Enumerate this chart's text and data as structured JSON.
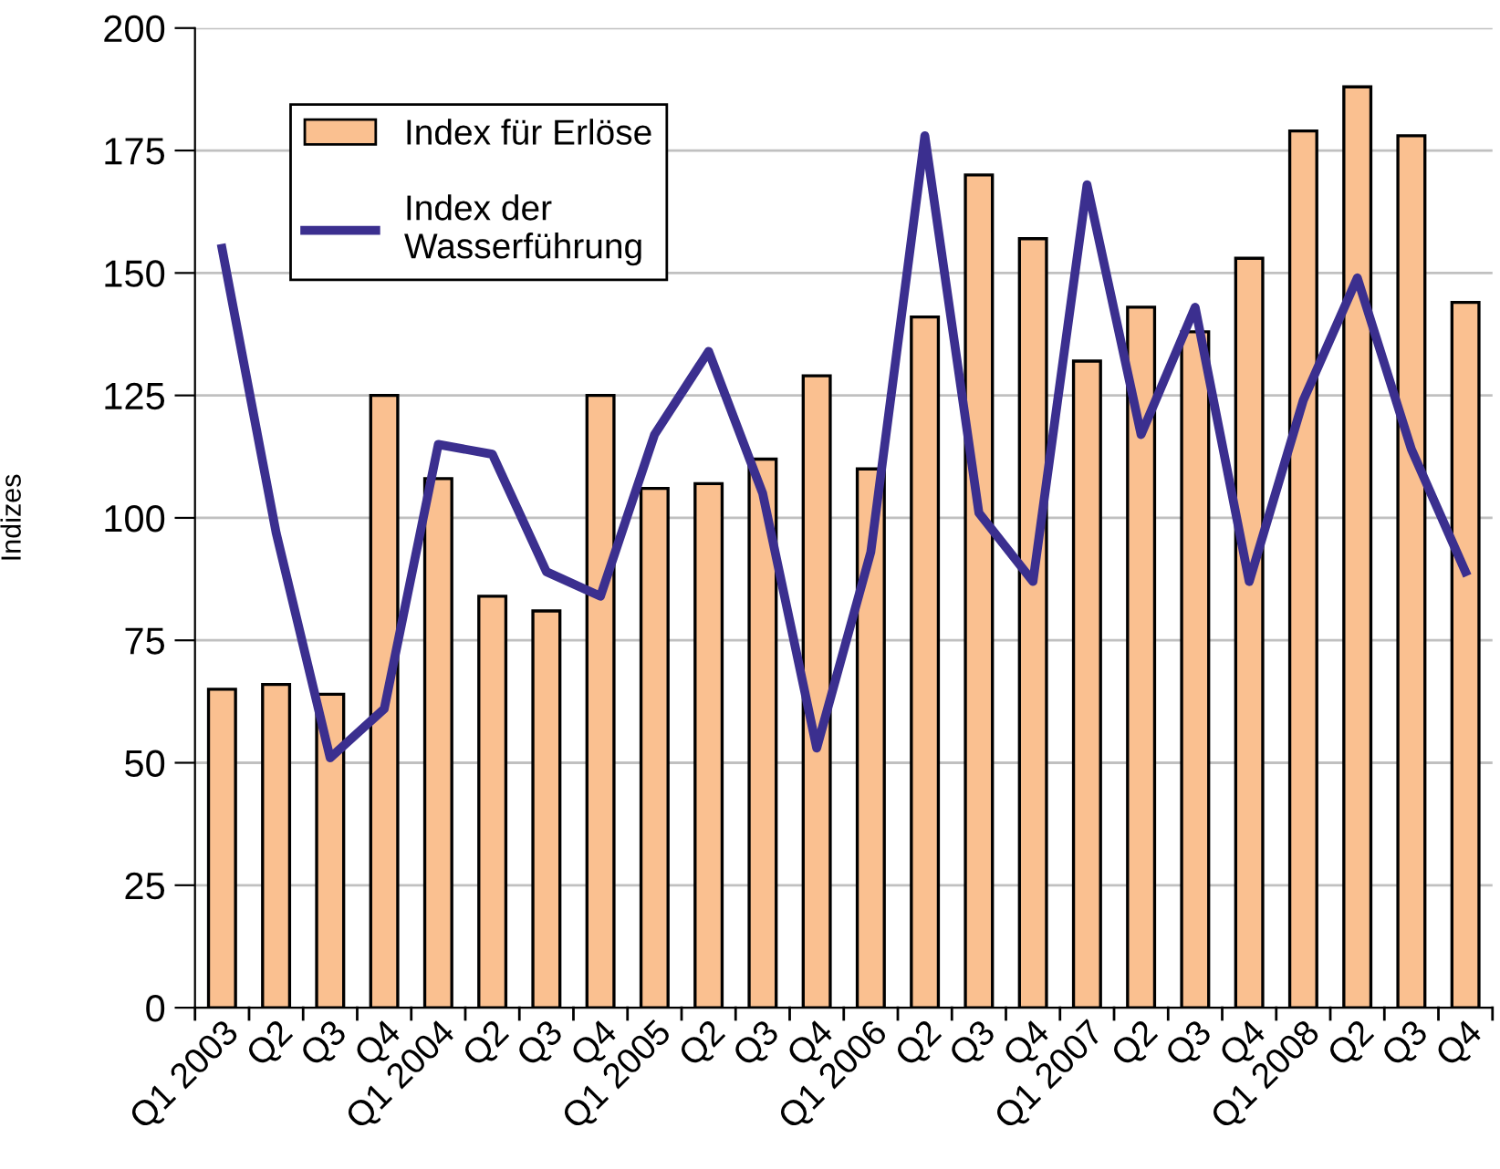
{
  "chart_data": {
    "type": "bar",
    "ylabel": "Indizes",
    "categories": [
      "Q1 2003",
      "Q2",
      "Q3",
      "Q4",
      "Q1 2004",
      "Q2",
      "Q3",
      "Q4",
      "Q1 2005",
      "Q2",
      "Q3",
      "Q4",
      "Q1 2006",
      "Q2",
      "Q3",
      "Q4",
      "Q1 2007",
      "Q2",
      "Q3",
      "Q4",
      "Q1 2008",
      "Q2",
      "Q3",
      "Q4"
    ],
    "series": [
      {
        "name": "Index für Erlöse",
        "color": "#fac090",
        "values": [
          65,
          66,
          64,
          125,
          108,
          84,
          81,
          125,
          106,
          107,
          112,
          129,
          110,
          141,
          170,
          157,
          132,
          143,
          138,
          153,
          179,
          188,
          178,
          144
        ]
      },
      {
        "name": "Index der\nWasserführung",
        "type": "line",
        "color": "#3b2f8f",
        "values": [
          155,
          97,
          51,
          61,
          115,
          113,
          89,
          84,
          117,
          134,
          105,
          53,
          93,
          178,
          101,
          87,
          168,
          117,
          143,
          87,
          124,
          149,
          114,
          89
        ]
      }
    ],
    "ylim": [
      0,
      200
    ],
    "yticks": [
      0,
      25,
      50,
      75,
      100,
      125,
      150,
      175,
      200
    ],
    "grid": "y",
    "legend": "top left"
  }
}
